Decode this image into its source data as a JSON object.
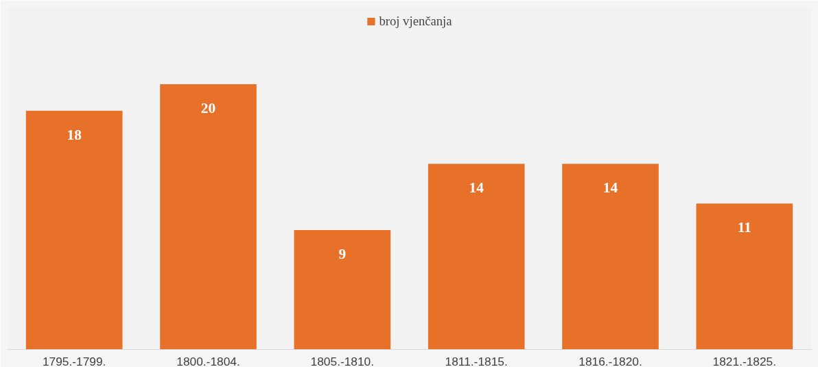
{
  "chart_data": {
    "type": "bar",
    "categories": [
      "1795.-1799.",
      "1800.-1804.",
      "1805.-1810.",
      "1811.-1815.",
      "1816.-1820.",
      "1821.-1825."
    ],
    "series": [
      {
        "name": "broj vjenčanja",
        "color": "#e8712a",
        "values": [
          18,
          20,
          9,
          14,
          14,
          11
        ]
      }
    ],
    "data_labels": true,
    "legend": "top",
    "tick_labels": "x"
  }
}
